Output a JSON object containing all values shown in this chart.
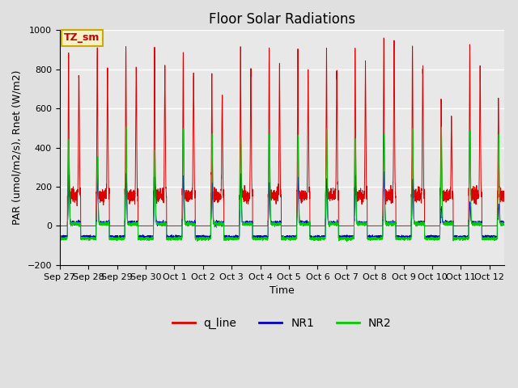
{
  "title": "Floor Solar Radiations",
  "xlabel": "Time",
  "ylabel": "PAR (umol/m2/s), Rnet (W/m2)",
  "ylim": [
    -200,
    1000
  ],
  "tick_labels": [
    "Sep 27",
    "Sep 28",
    "Sep 29",
    "Sep 30",
    "Oct 1",
    "Oct 2",
    "Oct 3",
    "Oct 4",
    "Oct 5",
    "Oct 6",
    "Oct 7",
    "Oct 8",
    "Oct 9",
    "Oct 10",
    "Oct 11",
    "Oct 12"
  ],
  "background_color": "#e0e0e0",
  "plot_bg_color": "#e8e8e8",
  "legend_label": "TZ_sm",
  "legend_box_color": "#f5f0c8",
  "legend_box_edge": "#ccaa00",
  "line_colors": {
    "q_line": "#dd0000",
    "NR1": "#0000cc",
    "NR2": "#00cc00"
  },
  "grid_color": "white",
  "title_fontsize": 12,
  "axis_fontsize": 9,
  "tick_fontsize": 8,
  "n_days": 15.5,
  "day_peaks_q": [
    730,
    760,
    770,
    770,
    760,
    600,
    750,
    760,
    750,
    760,
    760,
    930,
    780,
    490,
    780,
    510
  ],
  "day_peaks_nr1": [
    250,
    250,
    250,
    240,
    240,
    200,
    250,
    200,
    230,
    230,
    240,
    260,
    220,
    80,
    100,
    100
  ],
  "day_peaks_nr2": [
    430,
    350,
    490,
    380,
    480,
    460,
    450,
    460,
    450,
    490,
    440,
    460,
    480,
    490,
    480,
    460
  ],
  "q_day_base": 155,
  "nr_night_base": -55
}
